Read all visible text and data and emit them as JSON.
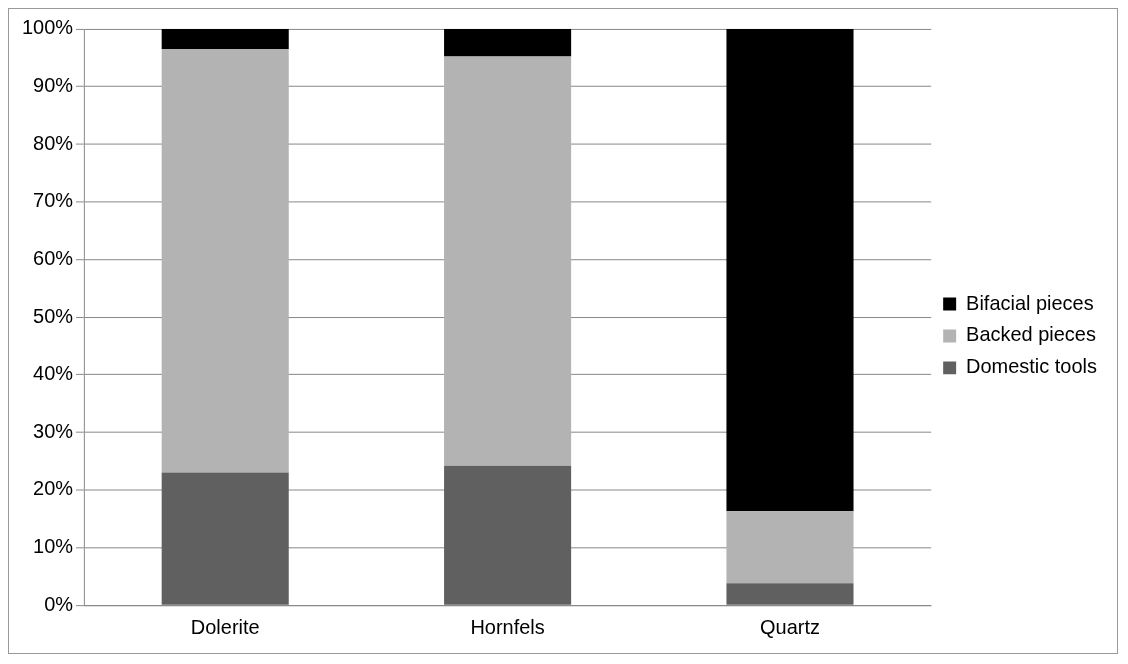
{
  "chart_data": {
    "type": "bar",
    "stacked": true,
    "categories": [
      "Dolerite",
      "Hornfels",
      "Quartz"
    ],
    "series": [
      {
        "name": "Domestic tools",
        "color": "#606060",
        "values": [
          23,
          24.2,
          3.8
        ]
      },
      {
        "name": "Backed pieces",
        "color": "#b3b3b3",
        "values": [
          73.5,
          71,
          12.5
        ]
      },
      {
        "name": "Bifacial pieces",
        "color": "#000000",
        "values": [
          3.5,
          4.8,
          83.7
        ]
      }
    ],
    "ylim": [
      0,
      100
    ],
    "yticks": [
      {
        "value": 0,
        "label": "0%"
      },
      {
        "value": 10,
        "label": "10%"
      },
      {
        "value": 20,
        "label": "20%"
      },
      {
        "value": 30,
        "label": "30%"
      },
      {
        "value": 40,
        "label": "40%"
      },
      {
        "value": 50,
        "label": "50%"
      },
      {
        "value": 60,
        "label": "60%"
      },
      {
        "value": 70,
        "label": "70%"
      },
      {
        "value": 80,
        "label": "80%"
      },
      {
        "value": 90,
        "label": "90%"
      },
      {
        "value": 100,
        "label": "100%"
      }
    ],
    "grid": "y",
    "legend": "right"
  }
}
